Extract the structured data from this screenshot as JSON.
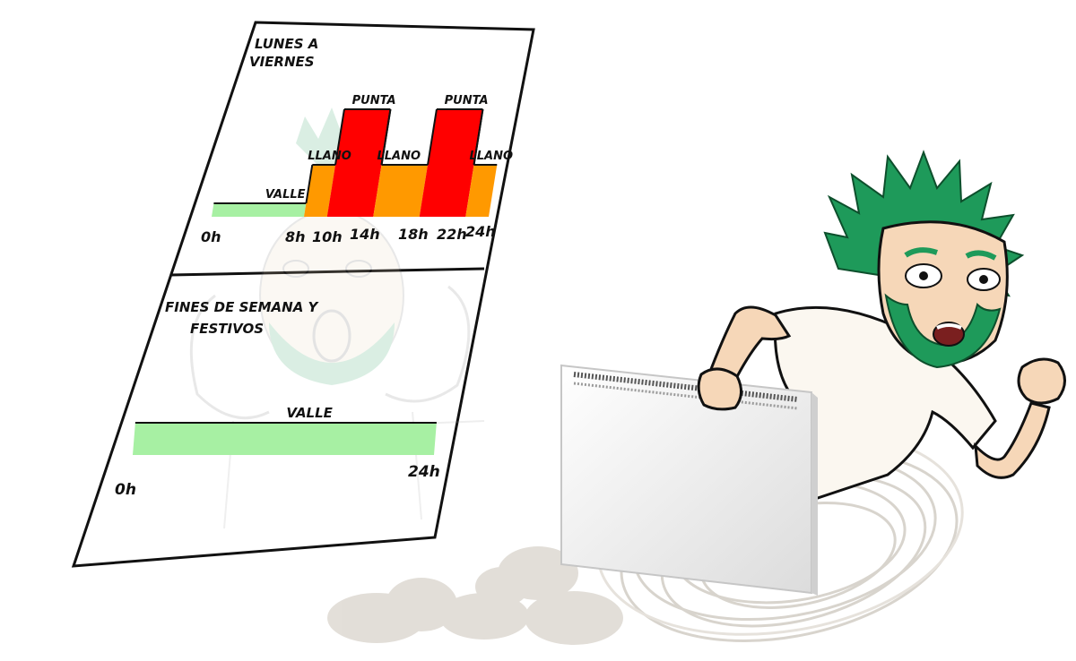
{
  "chart_data": [
    {
      "type": "step",
      "title": "LUNES A VIERNES",
      "title_lines": [
        "LUNES A",
        "VIERNES"
      ],
      "tick_labels": [
        "0h",
        "8h",
        "10h",
        "14h",
        "18h",
        "22h",
        "24h"
      ],
      "xlim": [
        0,
        24
      ],
      "levels": {
        "valle": 1,
        "llano": 2,
        "punta": 3
      },
      "segments": [
        {
          "label": "VALLE",
          "start": 0,
          "end": 8,
          "level": "valle",
          "color": "#a7f0a3"
        },
        {
          "label": "LLANO",
          "start": 8,
          "end": 10,
          "level": "llano",
          "color": "#ff9900"
        },
        {
          "label": "PUNTA",
          "start": 10,
          "end": 14,
          "level": "punta",
          "color": "#ff0000"
        },
        {
          "label": "LLANO",
          "start": 14,
          "end": 18,
          "level": "llano",
          "color": "#ff9900"
        },
        {
          "label": "PUNTA",
          "start": 18,
          "end": 22,
          "level": "punta",
          "color": "#ff0000"
        },
        {
          "label": "LLANO",
          "start": 22,
          "end": 24,
          "level": "llano",
          "color": "#ff9900"
        }
      ]
    },
    {
      "type": "step",
      "title": "FINES DE SEMANA Y FESTIVOS",
      "title_lines": [
        "FINES DE SEMANA Y",
        "FESTIVOS"
      ],
      "tick_labels": [
        "0h",
        "24h"
      ],
      "xlim": [
        0,
        24
      ],
      "levels": {
        "valle": 1
      },
      "segments": [
        {
          "label": "VALLE",
          "start": 0,
          "end": 24,
          "level": "valle",
          "color": "#a7f0a3"
        }
      ]
    }
  ],
  "illustration": {
    "character_hair_color": "#1e9a5a",
    "skin_color": "#f6d7b8",
    "shirt_color": "#fbf7f0",
    "heater_color": "#f0f0f0"
  }
}
